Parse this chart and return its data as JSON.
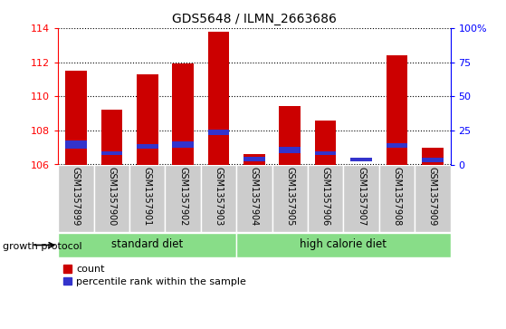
{
  "title": "GDS5648 / ILMN_2663686",
  "samples": [
    "GSM1357899",
    "GSM1357900",
    "GSM1357901",
    "GSM1357902",
    "GSM1357903",
    "GSM1357904",
    "GSM1357905",
    "GSM1357906",
    "GSM1357907",
    "GSM1357908",
    "GSM1357909"
  ],
  "baseline": 106,
  "red_tops": [
    111.5,
    109.2,
    111.3,
    111.9,
    113.8,
    106.6,
    109.4,
    108.6,
    106.0,
    112.4,
    107.0
  ],
  "blue_bottoms": [
    106.95,
    106.55,
    106.95,
    107.0,
    107.75,
    106.2,
    106.65,
    106.55,
    106.2,
    107.0,
    106.15
  ],
  "blue_tops": [
    107.4,
    106.75,
    107.2,
    107.35,
    108.05,
    106.45,
    107.05,
    106.75,
    106.4,
    107.25,
    106.4
  ],
  "left_ylim": [
    106,
    114
  ],
  "left_yticks": [
    106,
    108,
    110,
    112,
    114
  ],
  "right_ylim": [
    0,
    100
  ],
  "right_yticks": [
    0,
    25,
    50,
    75,
    100
  ],
  "right_yticklabels": [
    "0",
    "25",
    "50",
    "75",
    "100%"
  ],
  "groups": [
    {
      "label": "standard diet",
      "start": 0,
      "end": 4
    },
    {
      "label": "high calorie diet",
      "start": 5,
      "end": 10
    }
  ],
  "group_label": "growth protocol",
  "legend_red": "count",
  "legend_blue": "percentile rank within the sample",
  "bar_color_red": "#cc0000",
  "bar_color_blue": "#3333cc",
  "group_bg_color": "#88dd88",
  "sample_bg_color": "#cccccc",
  "bar_width": 0.6
}
